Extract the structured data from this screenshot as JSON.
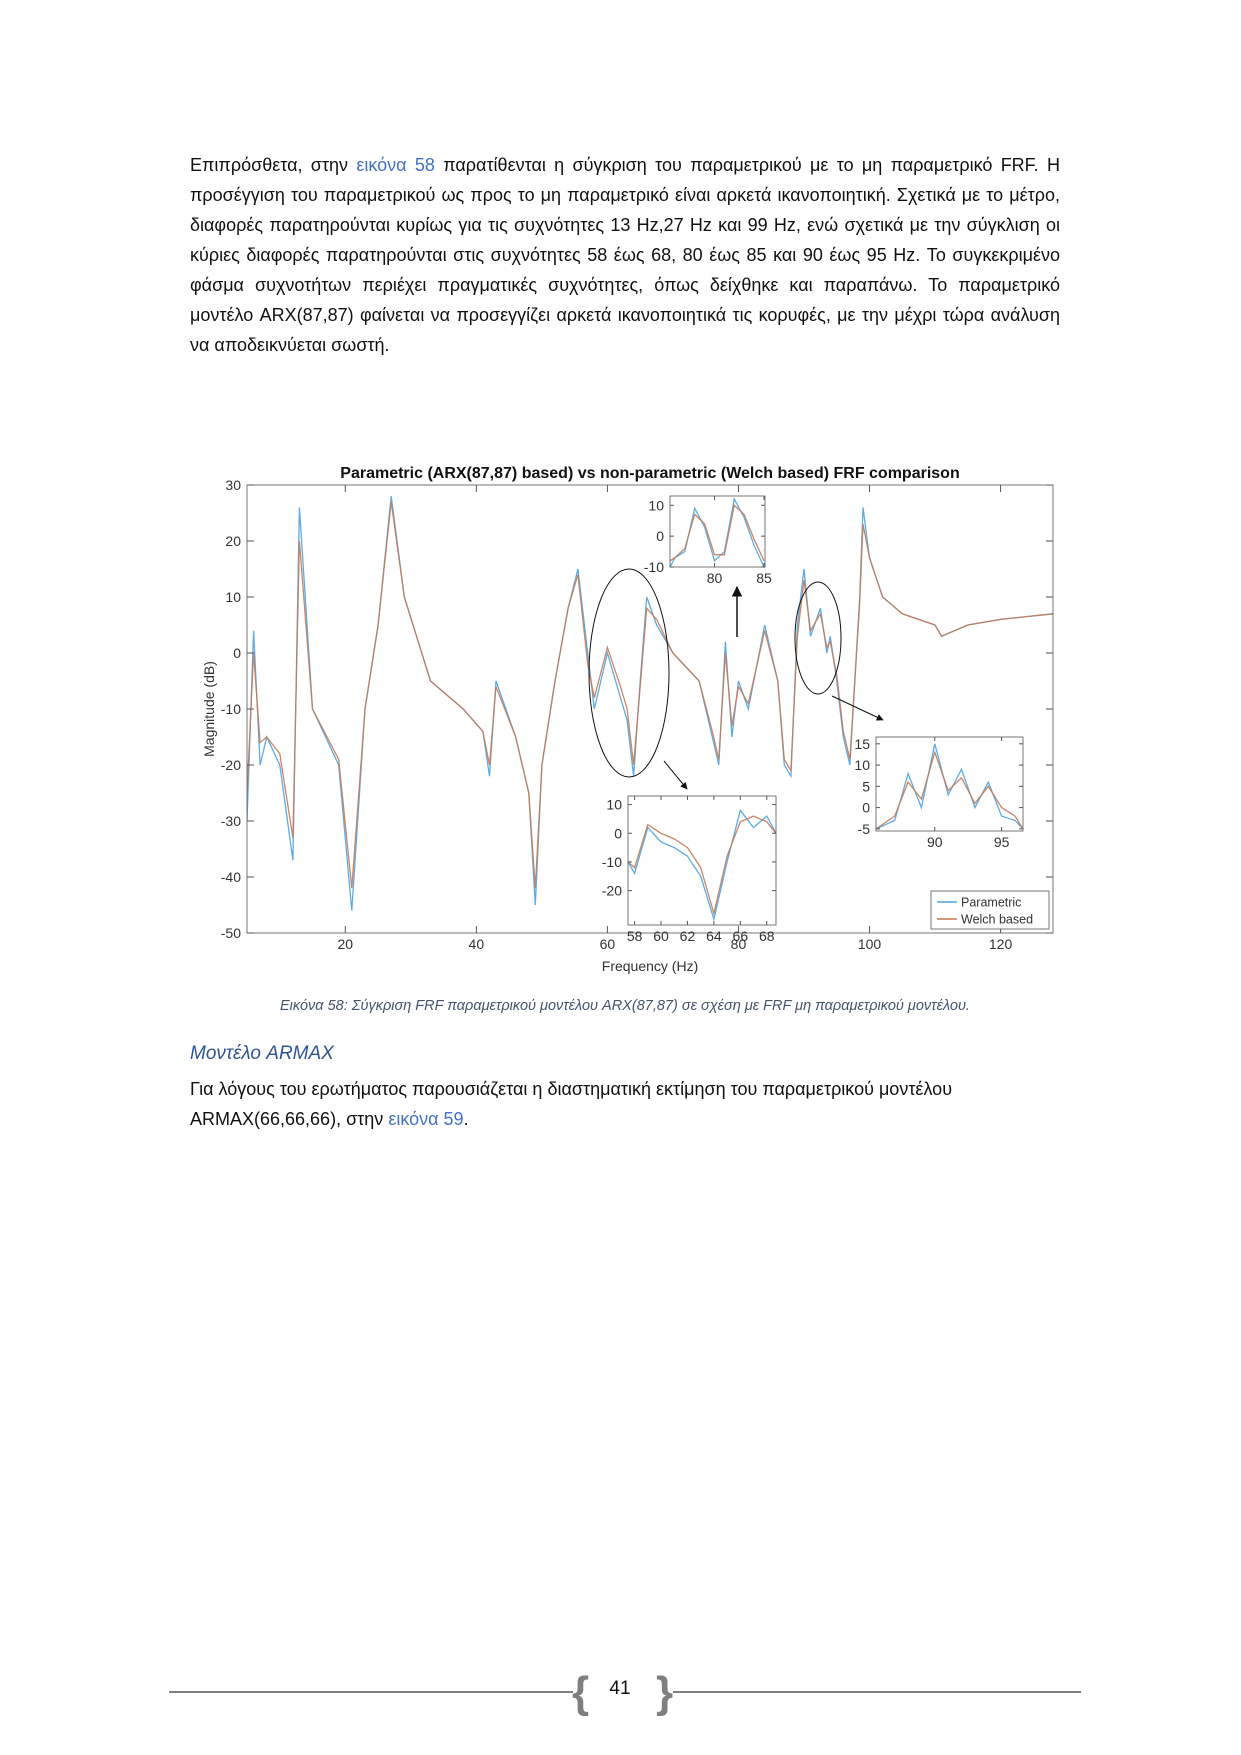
{
  "paragraph_1": [
    "Επιπρόσθετα, στην ",
    "εικόνα 58",
    " παρατίθενται η σύγκριση του παραμετρικού με το μη παραμετρικό FRF. Η προσέγγιση του παραμετρικού ως προς το μη παραμετρικό είναι αρκετά ικανοποιητική. Σχετικά με το μέτρο, διαφορές παρατηρούνται κυρίως για τις συχνότητες 13 Hz,27 Hz και 99 Hz, ενώ σχετικά με την σύγκλιση οι κύριες διαφορές παρατηρούνται στις συχνότητες 58 έως 68, 80 έως 85 και 90 έως 95 Hz. Το συγκεκριμένο φάσμα συχνοτήτων περιέχει πραγματικές συχνότητες, όπως δείχθηκε και παραπάνω. Το παραμετρικό μοντέλο ARX(87,87) φαίνεται να προσεγγίζει αρκετά ικανοποιητικά τις κορυφές, με την μέχρι τώρα ανάλυση να αποδεικνύεται σωστή."
  ],
  "chart_data": [
    {
      "type": "line",
      "title": "Parametric (ARX(87,87) based) vs non-parametric (Welch based) FRF comparison",
      "xlabel": "Frequency (Hz)",
      "ylabel": "Magnitude (dB)",
      "x": [
        5,
        6,
        7,
        8,
        10,
        12,
        13,
        15,
        19,
        21,
        23,
        25,
        27,
        29,
        33,
        38,
        41,
        42,
        43,
        46,
        48,
        49,
        50,
        52,
        54,
        55.5,
        57,
        58,
        60,
        62,
        63,
        64,
        65,
        66,
        67.5,
        70,
        74,
        76,
        77,
        78,
        79,
        80,
        81.5,
        84,
        86,
        87,
        88,
        89,
        90,
        91,
        92.5,
        93.5,
        94,
        95,
        96,
        97,
        98.5,
        99,
        100,
        102,
        105,
        110,
        111,
        115,
        120,
        128
      ],
      "series": [
        {
          "name": "Parametric",
          "color": "#4ba3e0",
          "values": [
            -30,
            4,
            -20,
            -15,
            -20,
            -37,
            26,
            -10,
            -20,
            -46,
            -10,
            5,
            28,
            10,
            -5,
            -10,
            -14,
            -22,
            -5,
            -15,
            -25,
            -45,
            -20,
            -5,
            8,
            15,
            0,
            -10,
            0,
            -8,
            -12,
            -22,
            -5,
            10,
            5,
            0,
            -5,
            -15,
            -20,
            2,
            -15,
            -5,
            -10,
            5,
            -5,
            -20,
            -22,
            5,
            15,
            3,
            8,
            0,
            3,
            -5,
            -15,
            -20,
            10,
            26,
            17,
            10,
            7,
            5,
            3,
            5,
            6,
            7
          ]
        },
        {
          "name": "Welch based",
          "color": "#c47a55",
          "values": [
            -25,
            0,
            -16,
            -15,
            -18,
            -33,
            20,
            -10,
            -19,
            -42,
            -10,
            5,
            27,
            10,
            -5,
            -10,
            -14,
            -20,
            -6,
            -15,
            -25,
            -42,
            -20,
            -5,
            8,
            14,
            -2,
            -8,
            1,
            -6,
            -10,
            -20,
            -6,
            8,
            6,
            0,
            -5,
            -14,
            -19,
            0,
            -13,
            -6,
            -9,
            4,
            -5,
            -19,
            -21,
            3,
            13,
            4,
            7,
            1,
            2,
            -4,
            -14,
            -19,
            9,
            23,
            17,
            10,
            7,
            5,
            3,
            5,
            6,
            7
          ]
        }
      ],
      "xlim": [
        5,
        128
      ],
      "ylim": [
        -50,
        30
      ],
      "xticks": [
        20,
        40,
        60,
        80,
        100,
        120
      ],
      "yticks": [
        -50,
        -40,
        -30,
        -20,
        -10,
        0,
        10,
        20,
        30
      ],
      "grid": false,
      "legend": "lower right"
    },
    {
      "type": "line",
      "x": [
        75.5,
        76,
        77,
        78,
        79,
        80,
        81,
        82,
        83,
        84,
        85
      ],
      "series": [
        {
          "color": "#4ba3e0",
          "values": [
            -10,
            -7,
            -5,
            9,
            3,
            -8,
            -5,
            12,
            6,
            -3,
            -10
          ]
        },
        {
          "color": "#c47a55",
          "values": [
            -8,
            -7,
            -4,
            7,
            4,
            -6,
            -6,
            10,
            7,
            -1,
            -8
          ]
        }
      ],
      "xlim": [
        75.5,
        85.1
      ],
      "ylim": [
        -10,
        13
      ],
      "xticks": [
        80,
        85
      ],
      "yticks": [
        -10,
        0,
        10
      ]
    },
    {
      "type": "line",
      "x": [
        57.5,
        58,
        59,
        60,
        61,
        62,
        63,
        64,
        65,
        66,
        67,
        68,
        68.7
      ],
      "series": [
        {
          "color": "#4ba3e0",
          "values": [
            -10,
            -14,
            2,
            -3,
            -5,
            -8,
            -15,
            -30,
            -10,
            8,
            2,
            6,
            0
          ]
        },
        {
          "color": "#c47a55",
          "values": [
            -10,
            -12,
            3,
            0,
            -2,
            -5,
            -12,
            -28,
            -8,
            4,
            6,
            4,
            0
          ]
        }
      ],
      "xlim": [
        57.5,
        68.7
      ],
      "ylim": [
        -32,
        13
      ],
      "xticks": [
        58,
        60,
        62,
        64,
        66,
        68
      ],
      "yticks": [
        -20,
        -10,
        0,
        10
      ]
    },
    {
      "type": "line",
      "x": [
        85.6,
        87,
        88,
        89,
        90,
        91,
        92,
        93,
        94,
        95,
        96,
        96.6
      ],
      "series": [
        {
          "color": "#4ba3e0",
          "values": [
            -5,
            -3,
            8,
            0,
            15,
            3,
            9,
            0,
            6,
            -2,
            -3,
            -5
          ]
        },
        {
          "color": "#c47a55",
          "values": [
            -5,
            -2,
            6,
            2,
            13,
            4,
            7,
            1,
            5,
            0,
            -2,
            -5
          ]
        }
      ],
      "xlim": [
        85.6,
        96.6
      ],
      "ylim": [
        -5.5,
        16.6
      ],
      "xticks": [
        90,
        95
      ],
      "yticks": [
        -5,
        0,
        5,
        10,
        15
      ]
    }
  ],
  "caption": "Εικόνα 58: Σύγκριση FRF παραμετρικού μοντέλου ARX(87,87) σε σχέση με FRF μη παραμετρικού μοντέλου.",
  "heading": "Μοντέλο ARMAX",
  "paragraph_2": [
    "Για λόγους του ερωτήματος παρουσιάζεται η διαστηματική εκτίμηση του παραμετρικού μοντέλου ARMAX(66,66,66), στην ",
    "εικόνα 59",
    "."
  ],
  "page_number": "41"
}
